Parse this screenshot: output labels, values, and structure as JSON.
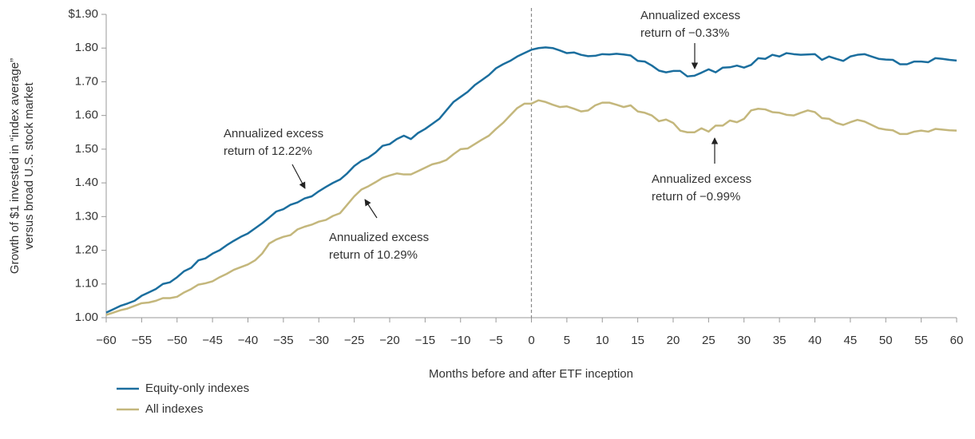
{
  "chart_data": {
    "type": "line",
    "y_axis_label": [
      "Growth of $1 invested in “index average”",
      "versus broad U.S. stock market"
    ],
    "x_axis_label": "Months before and after ETF inception",
    "x": [
      -60,
      -59,
      -58,
      -57,
      -56,
      -55,
      -54,
      -53,
      -52,
      -51,
      -50,
      -49,
      -48,
      -47,
      -46,
      -45,
      -44,
      -43,
      -42,
      -41,
      -40,
      -39,
      -38,
      -37,
      -36,
      -35,
      -34,
      -33,
      -32,
      -31,
      -30,
      -29,
      -28,
      -27,
      -26,
      -25,
      -24,
      -23,
      -22,
      -21,
      -20,
      -19,
      -18,
      -17,
      -16,
      -15,
      -14,
      -13,
      -12,
      -11,
      -10,
      -9,
      -8,
      -7,
      -6,
      -5,
      -4,
      -3,
      -2,
      -1,
      0,
      1,
      2,
      3,
      4,
      5,
      6,
      7,
      8,
      9,
      10,
      11,
      12,
      13,
      14,
      15,
      16,
      17,
      18,
      19,
      20,
      21,
      22,
      23,
      24,
      25,
      26,
      27,
      28,
      29,
      30,
      31,
      32,
      33,
      34,
      35,
      36,
      37,
      38,
      39,
      40,
      41,
      42,
      43,
      44,
      45,
      46,
      47,
      48,
      49,
      50,
      51,
      52,
      53,
      54,
      55,
      56,
      57,
      58,
      59,
      60
    ],
    "series": [
      {
        "name": "Equity-only indexes",
        "color": "#1b6e9e",
        "values": [
          1.015,
          1.025,
          1.035,
          1.042,
          1.05,
          1.065,
          1.075,
          1.085,
          1.1,
          1.105,
          1.12,
          1.138,
          1.148,
          1.17,
          1.176,
          1.19,
          1.2,
          1.215,
          1.228,
          1.24,
          1.25,
          1.265,
          1.28,
          1.297,
          1.315,
          1.322,
          1.335,
          1.342,
          1.354,
          1.36,
          1.375,
          1.388,
          1.4,
          1.41,
          1.428,
          1.45,
          1.465,
          1.475,
          1.49,
          1.51,
          1.515,
          1.53,
          1.54,
          1.53,
          1.548,
          1.56,
          1.575,
          1.59,
          1.615,
          1.64,
          1.655,
          1.67,
          1.69,
          1.705,
          1.72,
          1.74,
          1.752,
          1.762,
          1.775,
          1.785,
          1.795,
          1.8,
          1.802,
          1.8,
          1.793,
          1.785,
          1.787,
          1.78,
          1.776,
          1.777,
          1.782,
          1.781,
          1.783,
          1.781,
          1.778,
          1.762,
          1.76,
          1.748,
          1.733,
          1.728,
          1.732,
          1.732,
          1.716,
          1.718,
          1.727,
          1.737,
          1.728,
          1.742,
          1.743,
          1.748,
          1.742,
          1.75,
          1.77,
          1.768,
          1.78,
          1.775,
          1.785,
          1.782,
          1.78,
          1.781,
          1.782,
          1.765,
          1.775,
          1.768,
          1.762,
          1.775,
          1.78,
          1.782,
          1.775,
          1.768,
          1.766,
          1.765,
          1.752,
          1.752,
          1.76,
          1.76,
          1.758,
          1.77,
          1.768,
          1.765,
          1.763
        ]
      },
      {
        "name": "All indexes",
        "color": "#c4b77c",
        "values": [
          1.008,
          1.015,
          1.022,
          1.027,
          1.035,
          1.043,
          1.045,
          1.05,
          1.058,
          1.058,
          1.062,
          1.075,
          1.085,
          1.098,
          1.102,
          1.108,
          1.12,
          1.13,
          1.142,
          1.15,
          1.158,
          1.17,
          1.19,
          1.22,
          1.232,
          1.24,
          1.245,
          1.262,
          1.27,
          1.276,
          1.285,
          1.29,
          1.302,
          1.31,
          1.335,
          1.36,
          1.38,
          1.39,
          1.402,
          1.415,
          1.422,
          1.428,
          1.425,
          1.425,
          1.435,
          1.445,
          1.455,
          1.46,
          1.468,
          1.485,
          1.5,
          1.502,
          1.515,
          1.528,
          1.54,
          1.56,
          1.578,
          1.6,
          1.622,
          1.635,
          1.635,
          1.645,
          1.64,
          1.632,
          1.625,
          1.627,
          1.62,
          1.612,
          1.615,
          1.63,
          1.638,
          1.638,
          1.632,
          1.625,
          1.63,
          1.612,
          1.608,
          1.6,
          1.583,
          1.588,
          1.578,
          1.555,
          1.55,
          1.55,
          1.562,
          1.552,
          1.57,
          1.57,
          1.585,
          1.58,
          1.59,
          1.615,
          1.62,
          1.618,
          1.61,
          1.608,
          1.602,
          1.6,
          1.608,
          1.615,
          1.61,
          1.592,
          1.59,
          1.578,
          1.572,
          1.58,
          1.587,
          1.582,
          1.572,
          1.562,
          1.558,
          1.556,
          1.545,
          1.545,
          1.552,
          1.555,
          1.552,
          1.56,
          1.558,
          1.556,
          1.555
        ]
      }
    ],
    "xlim": [
      -60,
      60
    ],
    "xticks": [
      {
        "value": -60,
        "label": "−60"
      },
      {
        "value": -55,
        "label": "−55"
      },
      {
        "value": -50,
        "label": "−50"
      },
      {
        "value": -45,
        "label": "−45"
      },
      {
        "value": -40,
        "label": "−40"
      },
      {
        "value": -35,
        "label": "−35"
      },
      {
        "value": -30,
        "label": "−30"
      },
      {
        "value": -25,
        "label": "−25"
      },
      {
        "value": -20,
        "label": "−20"
      },
      {
        "value": -15,
        "label": "−15"
      },
      {
        "value": -10,
        "label": "−10"
      },
      {
        "value": -5,
        "label": "−5"
      },
      0,
      5,
      10,
      15,
      20,
      25,
      30,
      35,
      40,
      45,
      50,
      55,
      60
    ],
    "ylim": [
      1.0,
      1.9
    ],
    "yticks": [
      {
        "value": 1.0,
        "label": "1.00"
      },
      {
        "value": 1.1,
        "label": "1.10"
      },
      {
        "value": 1.2,
        "label": "1.20"
      },
      {
        "value": 1.3,
        "label": "1.30"
      },
      {
        "value": 1.4,
        "label": "1.40"
      },
      {
        "value": 1.5,
        "label": "1.50"
      },
      {
        "value": 1.6,
        "label": "1.60"
      },
      {
        "value": 1.7,
        "label": "1.70"
      },
      {
        "value": 1.8,
        "label": "1.80"
      },
      {
        "value": 1.9,
        "label": "$1.90"
      }
    ],
    "reference_line": {
      "x": 0
    },
    "annotations": [
      {
        "lines": [
          "Annualized excess",
          "return of −0.33%"
        ]
      },
      {
        "lines": [
          "Annualized excess",
          "return of 12.22%"
        ]
      },
      {
        "lines": [
          "Annualized excess",
          "return of 10.29%"
        ]
      },
      {
        "lines": [
          "Annualized excess",
          "return of −0.99%"
        ]
      }
    ],
    "legend": "bottom-left",
    "grid": false
  }
}
